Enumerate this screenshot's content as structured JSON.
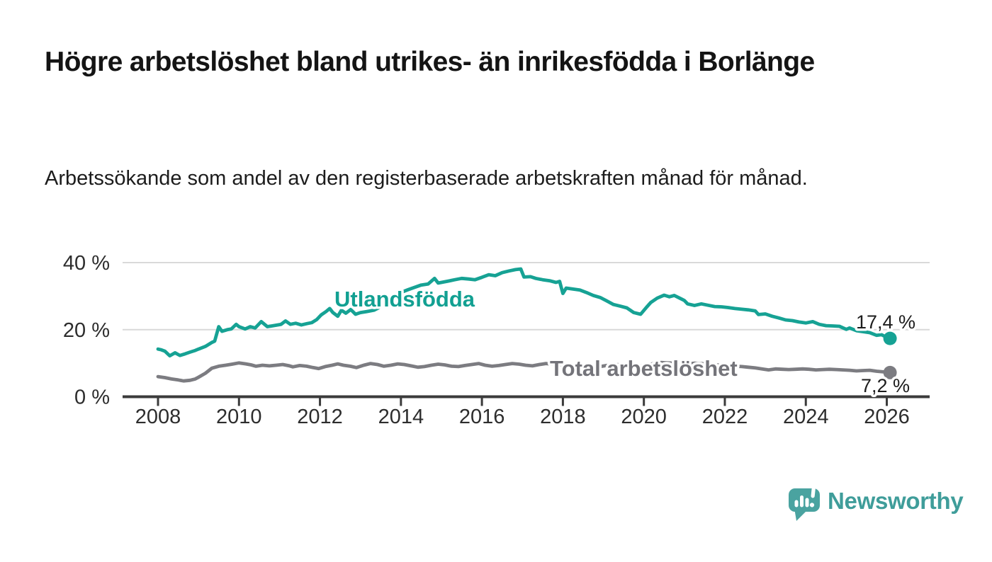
{
  "header": {
    "title": "Högre arbetslöshet bland utrikes- än inrikesfödda i Borlänge",
    "subtitle": "Arbetssökande som andel av den registerbaserade arbetskraften månad för månad."
  },
  "footer": {
    "brand": "Newsworthy"
  },
  "colors": {
    "series_utlandsfodda": "#16a294",
    "series_utlandsfodda_label": "#12a092",
    "series_total": "#7c7c81",
    "series_total_label": "#74747a",
    "axis": "#3b3b3b",
    "tick_text": "#2d2d2d",
    "grid": "#d9d9d9",
    "value_label": "#1d1d1d",
    "brand_icon": "#4aa3a0",
    "brand_text": "#3f9d9a"
  },
  "chart_data": {
    "type": "line",
    "title": "Högre arbetslöshet bland utrikes- än inrikesfödda i Borlänge",
    "subtitle": "Arbetssökande som andel av den registerbaserade arbetskraften månad för månad.",
    "unit": "%",
    "grid": true,
    "legend_position": "inline-labels",
    "x_axis": {
      "tick_labels": [
        "2008",
        "2010",
        "2012",
        "2014",
        "2016",
        "2018",
        "2020",
        "2022",
        "2024",
        "2026"
      ],
      "range_years": [
        2007.1,
        2027.05
      ]
    },
    "y_axis": {
      "ticks": [
        0,
        20,
        40
      ],
      "tick_labels": [
        "0 %",
        "20 %",
        "40 %"
      ],
      "range": [
        0,
        42
      ]
    },
    "series": [
      {
        "name": "Utlandsfödda",
        "color": "#16a294",
        "label_color": "#12a092",
        "end_label": "17,4 %",
        "end_value": 17.4,
        "points": [
          [
            2008.0,
            14.2
          ],
          [
            2008.08,
            14.0
          ],
          [
            2008.17,
            13.6
          ],
          [
            2008.29,
            12.2
          ],
          [
            2008.42,
            13.1
          ],
          [
            2008.54,
            12.3
          ],
          [
            2008.67,
            12.8
          ],
          [
            2008.79,
            13.3
          ],
          [
            2008.92,
            13.8
          ],
          [
            2009.0,
            14.2
          ],
          [
            2009.17,
            15.0
          ],
          [
            2009.33,
            16.2
          ],
          [
            2009.4,
            16.6
          ],
          [
            2009.5,
            20.9
          ],
          [
            2009.58,
            19.5
          ],
          [
            2009.71,
            20.0
          ],
          [
            2009.81,
            20.2
          ],
          [
            2009.93,
            21.6
          ],
          [
            2010.0,
            20.9
          ],
          [
            2010.15,
            20.2
          ],
          [
            2010.28,
            20.9
          ],
          [
            2010.4,
            20.5
          ],
          [
            2010.55,
            22.4
          ],
          [
            2010.7,
            20.9
          ],
          [
            2010.85,
            21.2
          ],
          [
            2011.04,
            21.6
          ],
          [
            2011.15,
            22.6
          ],
          [
            2011.27,
            21.6
          ],
          [
            2011.4,
            21.9
          ],
          [
            2011.54,
            21.4
          ],
          [
            2011.68,
            21.8
          ],
          [
            2011.8,
            22.1
          ],
          [
            2011.92,
            23.0
          ],
          [
            2012.03,
            24.4
          ],
          [
            2012.15,
            25.4
          ],
          [
            2012.24,
            26.3
          ],
          [
            2012.32,
            25.1
          ],
          [
            2012.44,
            24.0
          ],
          [
            2012.53,
            25.8
          ],
          [
            2012.64,
            24.9
          ],
          [
            2012.76,
            26.0
          ],
          [
            2012.88,
            24.6
          ],
          [
            2013.0,
            25.1
          ],
          [
            2013.15,
            25.4
          ],
          [
            2013.33,
            25.8
          ],
          [
            2013.5,
            26.8
          ],
          [
            2013.67,
            28.2
          ],
          [
            2013.83,
            29.7
          ],
          [
            2014.0,
            31.1
          ],
          [
            2014.17,
            31.9
          ],
          [
            2014.33,
            32.6
          ],
          [
            2014.5,
            33.3
          ],
          [
            2014.67,
            33.6
          ],
          [
            2014.83,
            35.3
          ],
          [
            2014.92,
            33.9
          ],
          [
            2015.0,
            34.1
          ],
          [
            2015.17,
            34.5
          ],
          [
            2015.33,
            34.9
          ],
          [
            2015.5,
            35.3
          ],
          [
            2015.67,
            35.1
          ],
          [
            2015.83,
            34.9
          ],
          [
            2016.0,
            35.6
          ],
          [
            2016.17,
            36.4
          ],
          [
            2016.33,
            36.1
          ],
          [
            2016.5,
            37.0
          ],
          [
            2016.67,
            37.5
          ],
          [
            2016.83,
            37.9
          ],
          [
            2016.96,
            38.1
          ],
          [
            2017.04,
            35.7
          ],
          [
            2017.2,
            35.8
          ],
          [
            2017.33,
            35.3
          ],
          [
            2017.5,
            34.9
          ],
          [
            2017.67,
            34.6
          ],
          [
            2017.83,
            34.1
          ],
          [
            2017.92,
            34.4
          ],
          [
            2018.0,
            30.8
          ],
          [
            2018.08,
            32.4
          ],
          [
            2018.25,
            32.1
          ],
          [
            2018.42,
            31.8
          ],
          [
            2018.58,
            31.1
          ],
          [
            2018.75,
            30.2
          ],
          [
            2018.92,
            29.6
          ],
          [
            2019.08,
            28.6
          ],
          [
            2019.25,
            27.5
          ],
          [
            2019.42,
            27.0
          ],
          [
            2019.58,
            26.5
          ],
          [
            2019.75,
            25.1
          ],
          [
            2019.92,
            24.6
          ],
          [
            2020.08,
            26.9
          ],
          [
            2020.17,
            28.1
          ],
          [
            2020.33,
            29.4
          ],
          [
            2020.5,
            30.3
          ],
          [
            2020.63,
            29.8
          ],
          [
            2020.75,
            30.2
          ],
          [
            2020.92,
            29.2
          ],
          [
            2021.0,
            28.7
          ],
          [
            2021.08,
            27.7
          ],
          [
            2021.25,
            27.2
          ],
          [
            2021.42,
            27.7
          ],
          [
            2021.58,
            27.3
          ],
          [
            2021.75,
            26.9
          ],
          [
            2021.92,
            26.8
          ],
          [
            2022.08,
            26.6
          ],
          [
            2022.25,
            26.3
          ],
          [
            2022.42,
            26.1
          ],
          [
            2022.58,
            25.9
          ],
          [
            2022.75,
            25.6
          ],
          [
            2022.83,
            24.5
          ],
          [
            2023.0,
            24.7
          ],
          [
            2023.17,
            24.0
          ],
          [
            2023.33,
            23.5
          ],
          [
            2023.5,
            22.9
          ],
          [
            2023.67,
            22.7
          ],
          [
            2023.83,
            22.3
          ],
          [
            2024.0,
            22.0
          ],
          [
            2024.17,
            22.4
          ],
          [
            2024.33,
            21.6
          ],
          [
            2024.5,
            21.2
          ],
          [
            2024.67,
            21.1
          ],
          [
            2024.83,
            21.0
          ],
          [
            2025.0,
            20.1
          ],
          [
            2025.08,
            20.5
          ],
          [
            2025.25,
            19.7
          ],
          [
            2025.42,
            19.4
          ],
          [
            2025.58,
            19.1
          ],
          [
            2025.75,
            18.3
          ],
          [
            2025.87,
            18.5
          ],
          [
            2026.0,
            17.7
          ],
          [
            2026.08,
            17.4
          ]
        ]
      },
      {
        "name": "Total arbetslöshet",
        "color": "#7c7c81",
        "label_color": "#74747a",
        "end_label": "7,2 %",
        "end_value": 7.2,
        "points": [
          [
            2008.0,
            6.0
          ],
          [
            2008.17,
            5.7
          ],
          [
            2008.33,
            5.3
          ],
          [
            2008.5,
            5.0
          ],
          [
            2008.63,
            4.7
          ],
          [
            2008.79,
            4.9
          ],
          [
            2008.92,
            5.3
          ],
          [
            2009.0,
            5.8
          ],
          [
            2009.17,
            7.0
          ],
          [
            2009.33,
            8.5
          ],
          [
            2009.5,
            9.1
          ],
          [
            2009.67,
            9.4
          ],
          [
            2009.83,
            9.7
          ],
          [
            2010.0,
            10.1
          ],
          [
            2010.17,
            9.8
          ],
          [
            2010.3,
            9.5
          ],
          [
            2010.42,
            9.1
          ],
          [
            2010.58,
            9.4
          ],
          [
            2010.75,
            9.2
          ],
          [
            2010.92,
            9.4
          ],
          [
            2011.08,
            9.6
          ],
          [
            2011.25,
            9.2
          ],
          [
            2011.33,
            8.9
          ],
          [
            2011.5,
            9.3
          ],
          [
            2011.67,
            9.1
          ],
          [
            2011.83,
            8.7
          ],
          [
            2011.97,
            8.4
          ],
          [
            2012.13,
            9.0
          ],
          [
            2012.3,
            9.4
          ],
          [
            2012.44,
            9.8
          ],
          [
            2012.58,
            9.4
          ],
          [
            2012.75,
            9.1
          ],
          [
            2012.9,
            8.7
          ],
          [
            2013.08,
            9.4
          ],
          [
            2013.25,
            9.9
          ],
          [
            2013.42,
            9.6
          ],
          [
            2013.58,
            9.1
          ],
          [
            2013.75,
            9.4
          ],
          [
            2013.92,
            9.8
          ],
          [
            2014.08,
            9.6
          ],
          [
            2014.25,
            9.2
          ],
          [
            2014.42,
            8.8
          ],
          [
            2014.58,
            9.0
          ],
          [
            2014.75,
            9.4
          ],
          [
            2014.92,
            9.7
          ],
          [
            2015.08,
            9.5
          ],
          [
            2015.25,
            9.1
          ],
          [
            2015.42,
            9.0
          ],
          [
            2015.58,
            9.3
          ],
          [
            2015.75,
            9.6
          ],
          [
            2015.92,
            9.9
          ],
          [
            2016.08,
            9.4
          ],
          [
            2016.25,
            9.1
          ],
          [
            2016.42,
            9.3
          ],
          [
            2016.58,
            9.6
          ],
          [
            2016.75,
            9.9
          ],
          [
            2016.92,
            9.7
          ],
          [
            2017.08,
            9.4
          ],
          [
            2017.25,
            9.2
          ],
          [
            2017.42,
            9.6
          ],
          [
            2017.58,
            9.9
          ],
          [
            2017.75,
            9.7
          ],
          [
            2017.92,
            9.4
          ],
          [
            2018.08,
            9.2
          ],
          [
            2018.25,
            9.0
          ],
          [
            2018.42,
            9.2
          ],
          [
            2018.58,
            9.4
          ],
          [
            2018.75,
            9.2
          ],
          [
            2018.92,
            9.0
          ],
          [
            2019.08,
            9.3
          ],
          [
            2019.25,
            9.5
          ],
          [
            2019.42,
            9.6
          ],
          [
            2019.58,
            9.4
          ],
          [
            2019.75,
            9.2
          ],
          [
            2019.92,
            9.1
          ],
          [
            2020.08,
            9.5
          ],
          [
            2020.25,
            9.9
          ],
          [
            2020.42,
            10.2
          ],
          [
            2020.58,
            10.1
          ],
          [
            2020.75,
            10.0
          ],
          [
            2020.92,
            9.9
          ],
          [
            2021.08,
            9.8
          ],
          [
            2021.25,
            10.0
          ],
          [
            2021.42,
            9.9
          ],
          [
            2021.58,
            9.7
          ],
          [
            2021.75,
            9.5
          ],
          [
            2021.92,
            9.4
          ],
          [
            2022.08,
            9.3
          ],
          [
            2022.25,
            9.1
          ],
          [
            2022.42,
            9.0
          ],
          [
            2022.58,
            8.8
          ],
          [
            2022.75,
            8.6
          ],
          [
            2022.92,
            8.3
          ],
          [
            2023.08,
            8.0
          ],
          [
            2023.25,
            8.3
          ],
          [
            2023.42,
            8.2
          ],
          [
            2023.58,
            8.1
          ],
          [
            2023.75,
            8.2
          ],
          [
            2023.92,
            8.3
          ],
          [
            2024.08,
            8.2
          ],
          [
            2024.25,
            8.0
          ],
          [
            2024.42,
            8.1
          ],
          [
            2024.58,
            8.2
          ],
          [
            2024.75,
            8.1
          ],
          [
            2024.92,
            8.0
          ],
          [
            2025.08,
            7.9
          ],
          [
            2025.25,
            7.7
          ],
          [
            2025.42,
            7.8
          ],
          [
            2025.58,
            7.9
          ],
          [
            2025.75,
            7.6
          ],
          [
            2025.92,
            7.4
          ],
          [
            2026.08,
            7.2
          ]
        ]
      }
    ]
  }
}
